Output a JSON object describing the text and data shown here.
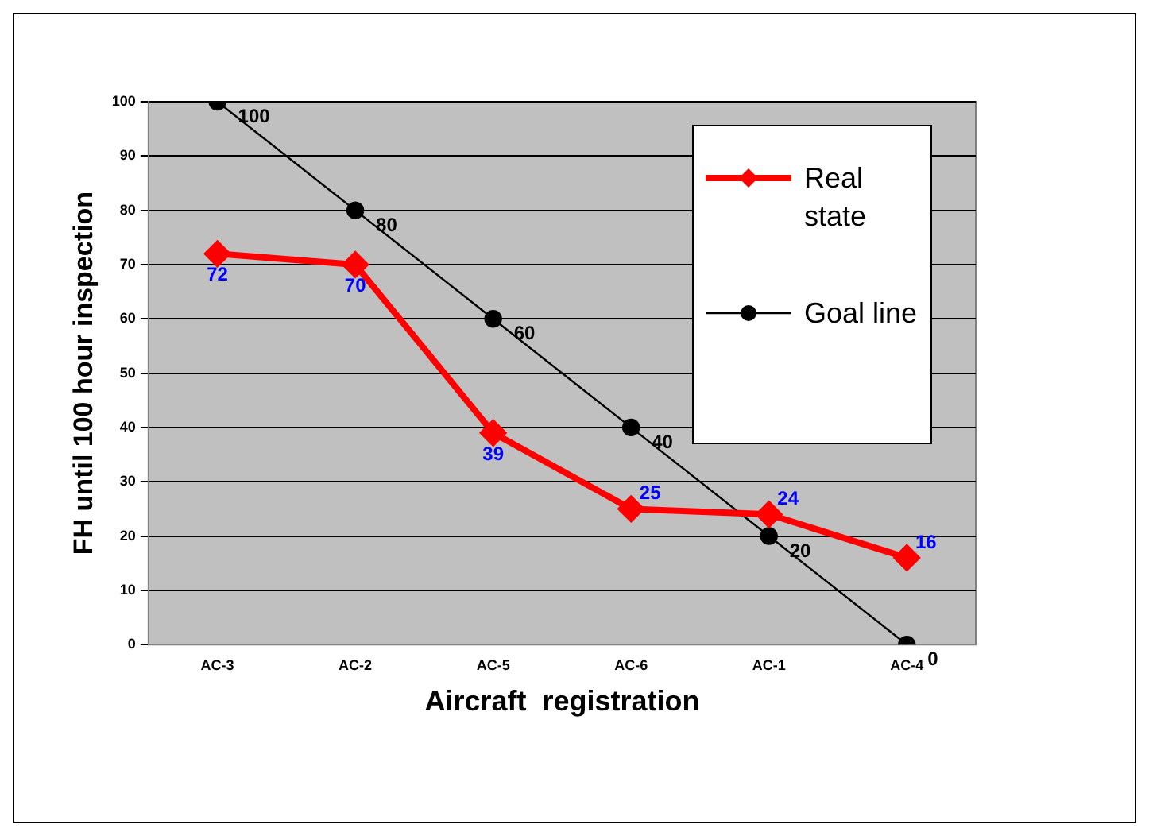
{
  "chart_data": {
    "type": "line",
    "xlabel": "Aircraft  registration",
    "ylabel": "FH until 100 hour inspection",
    "categories": [
      "AC-3",
      "AC-2",
      "AC-5",
      "AC-6",
      "AC-1",
      "AC-4"
    ],
    "series": [
      {
        "name": "Real state",
        "color": "#ff0000",
        "values": [
          72,
          70,
          39,
          25,
          24,
          16
        ],
        "marker": "diamond"
      },
      {
        "name": "Goal line",
        "color": "#000000",
        "values": [
          100,
          80,
          60,
          40,
          20,
          0
        ],
        "marker": "circle"
      }
    ],
    "ylim": [
      0,
      100
    ],
    "yticks": [
      0,
      10,
      20,
      30,
      40,
      50,
      60,
      70,
      80,
      90,
      100
    ],
    "grid": "y",
    "legend": "top right",
    "data_labels": true,
    "line_style": "solid"
  }
}
